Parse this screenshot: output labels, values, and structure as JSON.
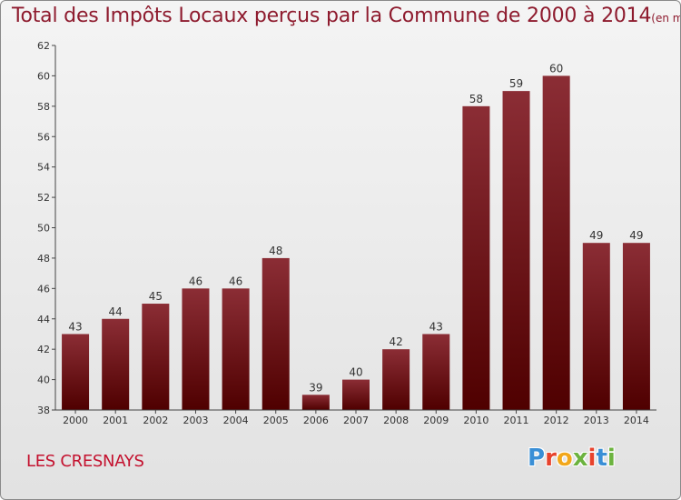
{
  "title": "Total des Impôts Locaux perçus par la Commune de 2000 à 2014",
  "unit": "(en milliers d'€)",
  "commune": "LES CRESNAYS",
  "logo": {
    "letters": [
      "P",
      "r",
      "o",
      "x",
      "i",
      "t",
      "i"
    ],
    "colors": [
      "#3a8fd6",
      "#e7432d",
      "#f2a71b",
      "#6cb33f",
      "#e7432d",
      "#3a8fd6",
      "#6cb33f"
    ]
  },
  "colors": {
    "bar_top": "#8b2d35",
    "bar_bottom": "#4f0000",
    "title": "#8e1b2e",
    "commune": "#c4122f"
  },
  "chart_data": {
    "type": "bar",
    "title": "Total des Impôts Locaux perçus par la Commune de 2000 à 2014",
    "ylabel": "(en milliers d'€)",
    "xlabel": "",
    "categories": [
      "2000",
      "2001",
      "2002",
      "2003",
      "2004",
      "2005",
      "2006",
      "2007",
      "2008",
      "2009",
      "2010",
      "2011",
      "2012",
      "2013",
      "2014"
    ],
    "values": [
      43,
      44,
      45,
      46,
      46,
      48,
      39,
      40,
      42,
      43,
      58,
      59,
      60,
      49,
      49
    ],
    "ylim": [
      38,
      62
    ],
    "yticks": [
      38,
      40,
      42,
      44,
      46,
      48,
      50,
      52,
      54,
      56,
      58,
      60,
      62
    ],
    "grid": false
  }
}
